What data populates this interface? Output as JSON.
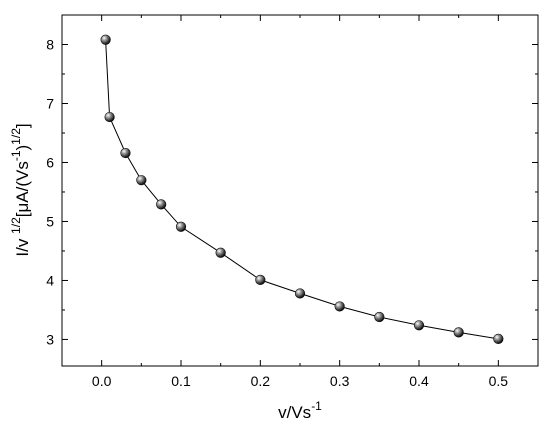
{
  "chart_data": {
    "type": "scatter",
    "title": "",
    "xlabel": {
      "base": "v/Vs",
      "sup": "-1"
    },
    "ylabel": {
      "p1": "I/v ",
      "s1": "1/2",
      "p2": "[μA/(Vs",
      "s2": "-1",
      "p3": ")",
      "s3": "1/2",
      "p4": "]"
    },
    "xlim": [
      -0.05,
      0.55
    ],
    "ylim": [
      2.55,
      8.5
    ],
    "xticks": [
      "0.0",
      "0.1",
      "0.2",
      "0.3",
      "0.4",
      "0.5"
    ],
    "yticks": [
      "3",
      "4",
      "5",
      "6",
      "7",
      "8"
    ],
    "grid": false,
    "series": [
      {
        "marker_color": "#111111",
        "line_color": "#000000",
        "x": [
          0.005,
          0.01,
          0.03,
          0.05,
          0.075,
          0.1,
          0.15,
          0.2,
          0.25,
          0.3,
          0.35,
          0.4,
          0.45,
          0.5
        ],
        "y": [
          8.08,
          6.77,
          6.16,
          5.7,
          5.29,
          4.91,
          4.47,
          4.01,
          3.78,
          3.56,
          3.38,
          3.24,
          3.12,
          3.01
        ]
      }
    ]
  }
}
